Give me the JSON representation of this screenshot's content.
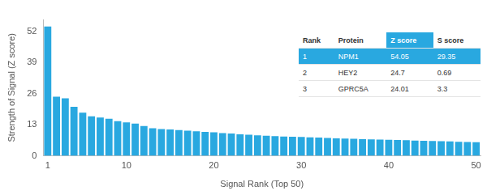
{
  "chart_data": {
    "type": "bar",
    "x_label": "Signal Rank (Top 50)",
    "y_label": "Strength of Signal (Z score)",
    "categories": [
      1,
      null,
      null,
      null,
      null,
      null,
      null,
      null,
      null,
      10,
      null,
      null,
      null,
      null,
      null,
      null,
      null,
      null,
      null,
      20,
      null,
      null,
      null,
      null,
      null,
      null,
      null,
      null,
      null,
      30,
      null,
      null,
      null,
      null,
      null,
      null,
      null,
      null,
      null,
      40,
      null,
      null,
      null,
      null,
      null,
      null,
      null,
      null,
      null,
      50
    ],
    "values": [
      54.05,
      24.7,
      24.01,
      20.5,
      18,
      16.5,
      16,
      15.5,
      14.5,
      14,
      13.5,
      12.5,
      11.5,
      11.2,
      11,
      10.8,
      10.5,
      10.3,
      10,
      9.8,
      9.5,
      9.3,
      9,
      8.8,
      8.6,
      8.4,
      8.2,
      8.1,
      8,
      7.9,
      7.7,
      7.6,
      7.5,
      7.3,
      7.2,
      7.1,
      7,
      6.9,
      6.8,
      6.7,
      6.6,
      6.5,
      6.4,
      6.3,
      6.2,
      6.1,
      6,
      5.9,
      5.8,
      5.7
    ],
    "color": "#29a8e0",
    "ylim": [
      0,
      57
    ],
    "yticks": [
      0,
      13,
      26,
      39,
      52
    ],
    "grid": false
  },
  "table": {
    "columns": [
      "Rank",
      "Protein",
      "Z score",
      "S score"
    ],
    "rows": [
      [
        1,
        "NPM1",
        54.05,
        29.35
      ],
      [
        2,
        "HEY2",
        24.7,
        0.69
      ],
      [
        3,
        "GPRC5A",
        24.01,
        3.3
      ]
    ]
  }
}
